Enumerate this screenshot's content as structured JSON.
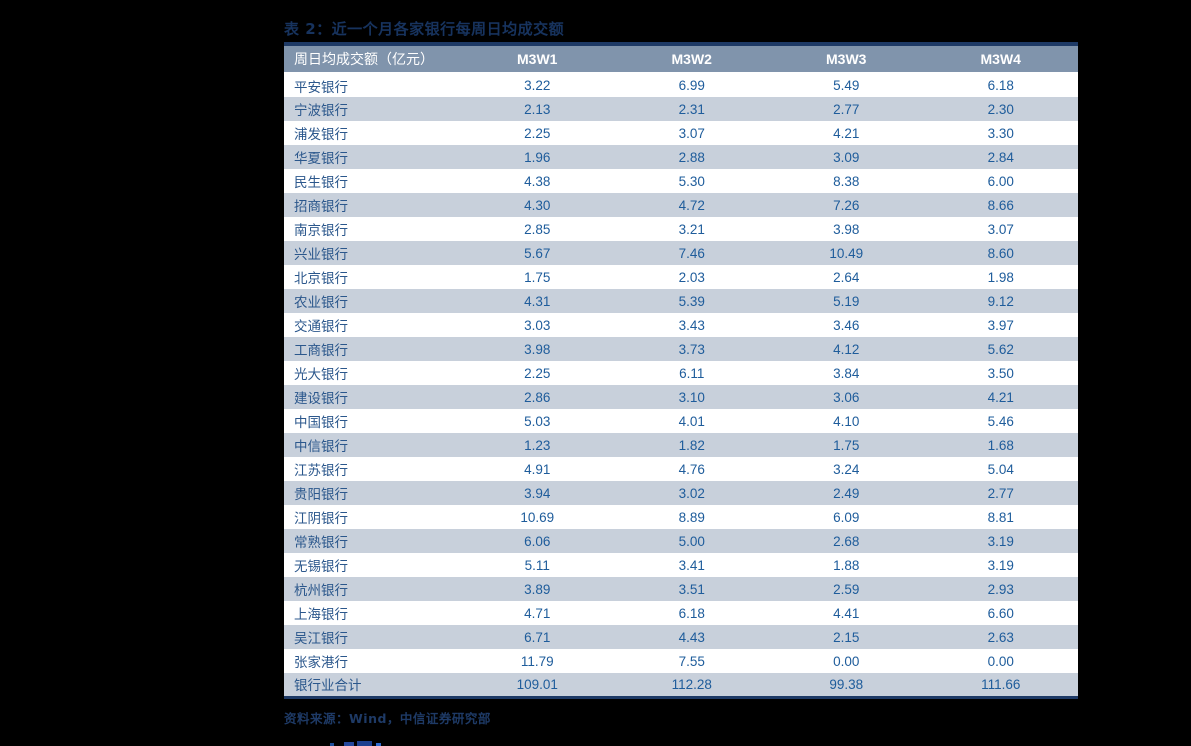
{
  "page": {
    "background_color": "#000000"
  },
  "table": {
    "title": "表 2：近一个月各家银行每周日均成交额",
    "columns": [
      "周日均成交额（亿元）",
      "M3W1",
      "M3W2",
      "M3W3",
      "M3W4"
    ],
    "rows": [
      [
        "平安银行",
        "3.22",
        "6.99",
        "5.49",
        "6.18"
      ],
      [
        "宁波银行",
        "2.13",
        "2.31",
        "2.77",
        "2.30"
      ],
      [
        "浦发银行",
        "2.25",
        "3.07",
        "4.21",
        "3.30"
      ],
      [
        "华夏银行",
        "1.96",
        "2.88",
        "3.09",
        "2.84"
      ],
      [
        "民生银行",
        "4.38",
        "5.30",
        "8.38",
        "6.00"
      ],
      [
        "招商银行",
        "4.30",
        "4.72",
        "7.26",
        "8.66"
      ],
      [
        "南京银行",
        "2.85",
        "3.21",
        "3.98",
        "3.07"
      ],
      [
        "兴业银行",
        "5.67",
        "7.46",
        "10.49",
        "8.60"
      ],
      [
        "北京银行",
        "1.75",
        "2.03",
        "2.64",
        "1.98"
      ],
      [
        "农业银行",
        "4.31",
        "5.39",
        "5.19",
        "9.12"
      ],
      [
        "交通银行",
        "3.03",
        "3.43",
        "3.46",
        "3.97"
      ],
      [
        "工商银行",
        "3.98",
        "3.73",
        "4.12",
        "5.62"
      ],
      [
        "光大银行",
        "2.25",
        "6.11",
        "3.84",
        "3.50"
      ],
      [
        "建设银行",
        "2.86",
        "3.10",
        "3.06",
        "4.21"
      ],
      [
        "中国银行",
        "5.03",
        "4.01",
        "4.10",
        "5.46"
      ],
      [
        "中信银行",
        "1.23",
        "1.82",
        "1.75",
        "1.68"
      ],
      [
        "江苏银行",
        "4.91",
        "4.76",
        "3.24",
        "5.04"
      ],
      [
        "贵阳银行",
        "3.94",
        "3.02",
        "2.49",
        "2.77"
      ],
      [
        "江阴银行",
        "10.69",
        "8.89",
        "6.09",
        "8.81"
      ],
      [
        "常熟银行",
        "6.06",
        "5.00",
        "2.68",
        "3.19"
      ],
      [
        "无锡银行",
        "5.11",
        "3.41",
        "1.88",
        "3.19"
      ],
      [
        "杭州银行",
        "3.89",
        "3.51",
        "2.59",
        "2.93"
      ],
      [
        "上海银行",
        "4.71",
        "6.18",
        "4.41",
        "6.60"
      ],
      [
        "吴江银行",
        "6.71",
        "4.43",
        "2.15",
        "2.63"
      ],
      [
        "张家港行",
        "11.79",
        "7.55",
        "0.00",
        "0.00"
      ],
      [
        "银行业合计",
        "109.01",
        "112.28",
        "99.38",
        "111.66"
      ]
    ],
    "source": "资料来源：Wind，中信证券研究部",
    "colors": {
      "title_navy": "#17335e",
      "border_navy": "#1e3a66",
      "header_bg": "#8094ac",
      "header_text": "#ffffff",
      "stripe_bg": "#c8d0db",
      "row_bg": "#ffffff",
      "name_text": "#2b578c",
      "number_text": "#1e5c9b"
    }
  }
}
